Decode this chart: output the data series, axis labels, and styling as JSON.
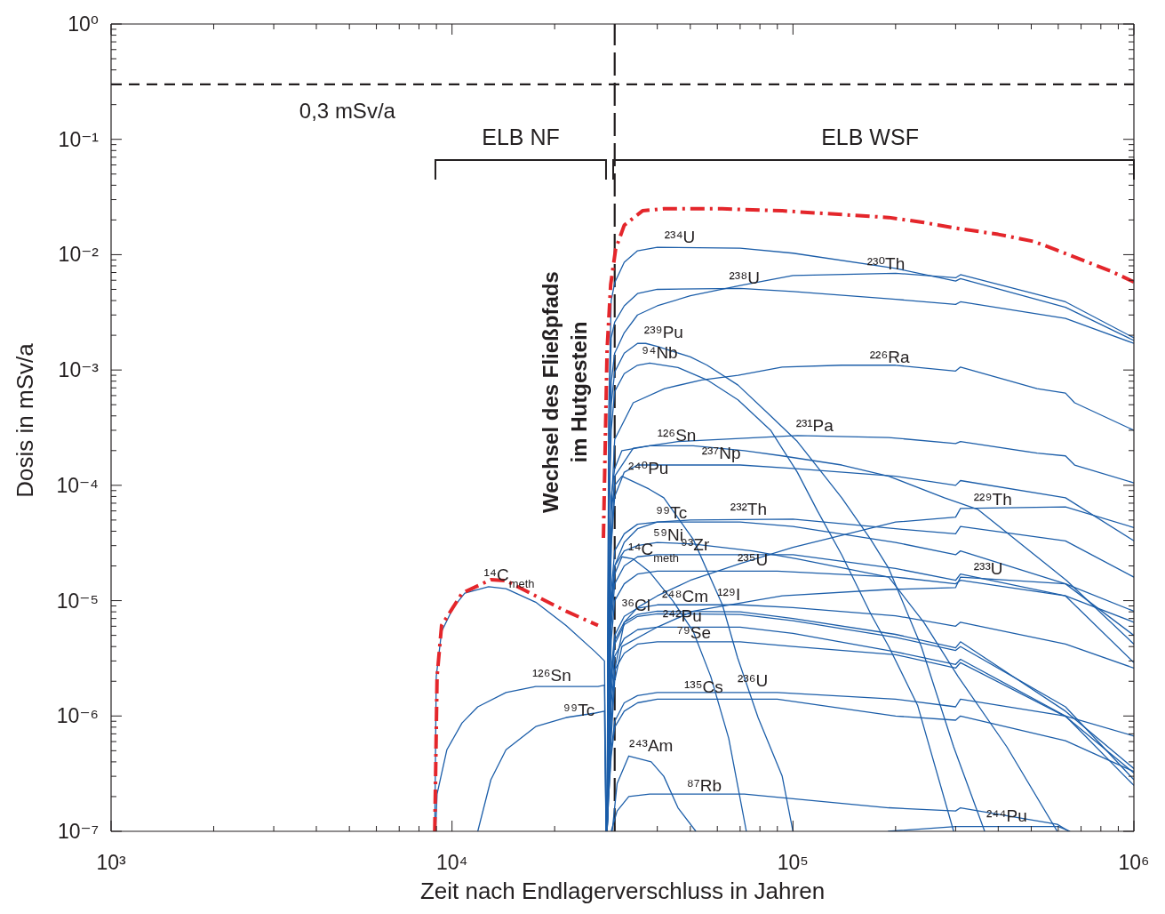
{
  "chart_data": {
    "type": "line",
    "xlabel": "Zeit nach Endlagerverschluss in Jahren",
    "ylabel": "Dosis in mSv/a",
    "log": "xy",
    "marker": "none",
    "line_style": "solid",
    "xlim": [
      1000,
      1000000
    ],
    "ylim": [
      1e-07,
      1
    ],
    "xticks": [
      {
        "value": 1000,
        "label": "10³"
      },
      {
        "value": 2000,
        "label": null
      },
      {
        "value": 3000,
        "label": null
      },
      {
        "value": 4000,
        "label": null
      },
      {
        "value": 5000,
        "label": null
      },
      {
        "value": 6000,
        "label": null
      },
      {
        "value": 7000,
        "label": null
      },
      {
        "value": 8000,
        "label": null
      },
      {
        "value": 9000,
        "label": null
      },
      {
        "value": 10000,
        "label": "10⁴"
      },
      {
        "value": 20000,
        "label": null
      },
      {
        "value": 30000,
        "label": null
      },
      {
        "value": 40000,
        "label": null
      },
      {
        "value": 50000,
        "label": null
      },
      {
        "value": 60000,
        "label": null
      },
      {
        "value": 70000,
        "label": null
      },
      {
        "value": 80000,
        "label": null
      },
      {
        "value": 90000,
        "label": null
      },
      {
        "value": 100000,
        "label": "10⁵"
      },
      {
        "value": 200000,
        "label": null
      },
      {
        "value": 300000,
        "label": null
      },
      {
        "value": 400000,
        "label": null
      },
      {
        "value": 500000,
        "label": null
      },
      {
        "value": 600000,
        "label": null
      },
      {
        "value": 700000,
        "label": null
      },
      {
        "value": 800000,
        "label": null
      },
      {
        "value": 900000,
        "label": null
      },
      {
        "value": 1000000,
        "label": "10⁶"
      }
    ],
    "yticks": [
      {
        "value": 1e-07,
        "label": "10⁻⁷"
      },
      {
        "value": 2e-07,
        "label": null
      },
      {
        "value": 3e-07,
        "label": null
      },
      {
        "value": 4e-07,
        "label": null
      },
      {
        "value": 5e-07,
        "label": null
      },
      {
        "value": 6e-07,
        "label": null
      },
      {
        "value": 7e-07,
        "label": null
      },
      {
        "value": 8e-07,
        "label": null
      },
      {
        "value": 9e-07,
        "label": null
      },
      {
        "value": 1e-06,
        "label": "10⁻⁶"
      },
      {
        "value": 2e-06,
        "label": null
      },
      {
        "value": 3e-06,
        "label": null
      },
      {
        "value": 4e-06,
        "label": null
      },
      {
        "value": 5e-06,
        "label": null
      },
      {
        "value": 6e-06,
        "label": null
      },
      {
        "value": 7e-06,
        "label": null
      },
      {
        "value": 8e-06,
        "label": null
      },
      {
        "value": 9e-06,
        "label": null
      },
      {
        "value": 1e-05,
        "label": "10⁻⁵"
      },
      {
        "value": 2e-05,
        "label": null
      },
      {
        "value": 3e-05,
        "label": null
      },
      {
        "value": 4e-05,
        "label": null
      },
      {
        "value": 5e-05,
        "label": null
      },
      {
        "value": 6e-05,
        "label": null
      },
      {
        "value": 7e-05,
        "label": null
      },
      {
        "value": 8e-05,
        "label": null
      },
      {
        "value": 9e-05,
        "label": null
      },
      {
        "value": 0.0001,
        "label": "10⁻⁴"
      },
      {
        "value": 0.0002,
        "label": null
      },
      {
        "value": 0.0003,
        "label": null
      },
      {
        "value": 0.0004,
        "label": null
      },
      {
        "value": 0.0005,
        "label": null
      },
      {
        "value": 0.0006,
        "label": null
      },
      {
        "value": 0.0007,
        "label": null
      },
      {
        "value": 0.0008,
        "label": null
      },
      {
        "value": 0.0009,
        "label": null
      },
      {
        "value": 0.001,
        "label": "10⁻³"
      },
      {
        "value": 0.002,
        "label": null
      },
      {
        "value": 0.003,
        "label": null
      },
      {
        "value": 0.004,
        "label": null
      },
      {
        "value": 0.005,
        "label": null
      },
      {
        "value": 0.006,
        "label": null
      },
      {
        "value": 0.007,
        "label": null
      },
      {
        "value": 0.008,
        "label": null
      },
      {
        "value": 0.009,
        "label": null
      },
      {
        "value": 0.01,
        "label": "10⁻²"
      },
      {
        "value": 0.02,
        "label": null
      },
      {
        "value": 0.03,
        "label": null
      },
      {
        "value": 0.04,
        "label": null
      },
      {
        "value": 0.05,
        "label": null
      },
      {
        "value": 0.06,
        "label": null
      },
      {
        "value": 0.07,
        "label": null
      },
      {
        "value": 0.08,
        "label": null
      },
      {
        "value": 0.09,
        "label": null
      },
      {
        "value": 0.1,
        "label": "10⁻¹"
      },
      {
        "value": 0.2,
        "label": null
      },
      {
        "value": 0.3,
        "label": null
      },
      {
        "value": 0.4,
        "label": null
      },
      {
        "value": 0.5,
        "label": null
      },
      {
        "value": 0.6,
        "label": null
      },
      {
        "value": 0.7,
        "label": null
      },
      {
        "value": 0.8,
        "label": null
      },
      {
        "value": 0.9,
        "label": null
      },
      {
        "value": 1,
        "label": "10⁰"
      }
    ],
    "ref_lines": [
      {
        "axis": "y",
        "value": 0.3,
        "label": "0,3 mSv/a",
        "color": "#231f20",
        "line_style": "dashed"
      },
      {
        "axis": "x",
        "value": 30000,
        "label": "Wechsel des Fließpfads\nim Hutgestein",
        "color": "#231f20",
        "line_style": "dashed"
      }
    ],
    "series": [
      {
        "color": "#1c5ea9",
        "x": [
          8900,
          8990,
          9320,
          10080,
          10900,
          12800,
          14400,
          17600,
          21600,
          26300,
          28000,
          28300
        ],
        "values": [
          1e-07,
          2.2e-06,
          5.4e-06,
          8.7e-06,
          1.16e-05,
          1.32e-05,
          1.27e-05,
          9.7e-06,
          6.1e-06,
          3.6e-06,
          3e-06,
          1e-07
        ]
      },
      {
        "color": "#1c5ea9",
        "x": [
          8950,
          9040,
          9660,
          10700,
          11900,
          14400,
          17600,
          21600,
          26800,
          28000,
          28300
        ],
        "values": [
          1e-07,
          2.1e-07,
          5.1e-07,
          8.7e-07,
          1.2e-06,
          1.6e-06,
          1.8e-06,
          1.8e-06,
          1.8e-06,
          1.85e-06,
          1e-07
        ]
      },
      {
        "color": "#1c5ea9",
        "x": [
          11900,
          13000,
          14400,
          17600,
          21600,
          26300,
          28000,
          28300
        ],
        "values": [
          1e-07,
          2.8e-07,
          5.1e-07,
          8.1e-07,
          9.7e-07,
          1.06e-06,
          1.1e-06,
          1e-07
        ]
      },
      {
        "color": "#1c5ea9",
        "x": [
          28500,
          28800,
          29300,
          30000,
          32000,
          35000,
          40000,
          70000,
          100000,
          200000,
          300000,
          310000,
          630000,
          1000000
        ],
        "values": [
          1e-07,
          0.0004,
          0.004,
          0.0057,
          0.0086,
          0.0108,
          0.0116,
          0.0114,
          0.0103,
          0.0076,
          0.0059,
          0.0062,
          0.0035,
          0.0018
        ]
      },
      {
        "color": "#1c5ea9",
        "x": [
          28500,
          28800,
          29300,
          30000,
          32000,
          35000,
          40000,
          70000,
          100000,
          200000,
          300000,
          310000,
          630000,
          1000000
        ],
        "values": [
          1e-07,
          0.0002,
          0.0019,
          0.0026,
          0.0036,
          0.0046,
          0.005,
          0.0051,
          0.0048,
          0.0041,
          0.0037,
          0.0039,
          0.0028,
          0.0017
        ]
      },
      {
        "color": "#1c5ea9",
        "x": [
          28500,
          28800,
          29300,
          30000,
          32000,
          35000,
          40000,
          50000,
          70000,
          100000,
          200000,
          300000,
          310000,
          630000,
          1000000
        ],
        "values": [
          1e-07,
          3e-05,
          0.00078,
          0.0014,
          0.0021,
          0.003,
          0.0036,
          0.0044,
          0.0054,
          0.0066,
          0.0069,
          0.0063,
          0.0067,
          0.0039,
          0.0019
        ]
      },
      {
        "color": "#1c5ea9",
        "x": [
          28500,
          28800,
          29300,
          30000,
          32000,
          35000,
          37000,
          40000,
          50000,
          56000,
          69000,
          86000,
          103000,
          139000,
          169000,
          191000,
          238000,
          296000,
          365000
        ],
        "values": [
          1e-07,
          5e-05,
          0.0005,
          0.00096,
          0.0014,
          0.0017,
          0.0017,
          0.0016,
          0.0013,
          0.0011,
          0.00074,
          0.0004,
          0.00024,
          7.8e-05,
          3.4e-05,
          1.9e-05,
          4e-06,
          5.4e-07,
          1e-07
        ]
      },
      {
        "color": "#1c5ea9",
        "x": [
          28500,
          28800,
          29300,
          30000,
          32000,
          35000,
          38000,
          46000,
          56000,
          69000,
          86000,
          103000,
          118000,
          139000,
          169000,
          191000,
          232000,
          296000
        ],
        "values": [
          1e-07,
          4e-05,
          0.0003,
          0.00065,
          0.00093,
          0.0011,
          0.00115,
          0.00105,
          0.00082,
          0.00055,
          0.0003,
          0.00013,
          6e-05,
          2.5e-05,
          7.7e-06,
          4e-06,
          1.24e-06,
          1e-07
        ]
      },
      {
        "color": "#1c5ea9",
        "x": [
          28500,
          28800,
          29300,
          30000,
          34000,
          42000,
          54000,
          69000,
          93000,
          139000,
          200000,
          300000,
          310000,
          520000,
          630000,
          670000,
          1000000
        ],
        "values": [
          1e-07,
          5e-06,
          6e-05,
          0.00025,
          0.00052,
          0.00069,
          0.00082,
          0.0009,
          0.00106,
          0.0011,
          0.0011,
          0.00098,
          0.00106,
          0.00069,
          0.00063,
          0.00052,
          0.0003
        ]
      },
      {
        "color": "#1c5ea9",
        "x": [
          28500,
          28800,
          29300,
          30000,
          34000,
          46000,
          103000,
          191000,
          300000,
          310000,
          520000,
          630000,
          670000,
          1000000
        ],
        "values": [
          1e-07,
          2e-06,
          3e-05,
          0.00012,
          0.00021,
          0.00024,
          0.00027,
          0.00026,
          0.00023,
          0.00024,
          0.00019,
          0.00018,
          0.00015,
          0.000105
        ]
      },
      {
        "color": "#1c5ea9",
        "x": [
          28500,
          28800,
          29300,
          30000,
          31500,
          38000,
          51000,
          72000,
          93000,
          139000,
          191000,
          278000,
          348000,
          634000,
          1000000
        ],
        "values": [
          1e-07,
          1e-05,
          8e-05,
          0.00014,
          0.0002,
          0.00022,
          0.00022,
          0.0002,
          0.00018,
          0.00015,
          0.00012,
          7.8e-05,
          6.2e-05,
          1.5e-05,
          4.2e-06
        ]
      },
      {
        "color": "#1c5ea9",
        "x": [
          28500,
          28800,
          29300,
          30000,
          32000,
          35000,
          70000,
          100000,
          200000,
          300000,
          310000,
          630000,
          1000000
        ],
        "values": [
          1e-07,
          4e-06,
          3e-05,
          8e-05,
          0.00013,
          0.00015,
          0.00015,
          0.00014,
          0.00012,
          0.0001,
          0.00011,
          7.8e-05,
          3.3e-05
        ]
      },
      {
        "color": "#1c5ea9",
        "x": [
          28500,
          28800,
          29300,
          30000,
          31500,
          37800,
          41800,
          51000,
          62100,
          68800,
          79000,
          93000,
          100000
        ],
        "values": [
          1e-07,
          1e-05,
          6e-05,
          0.0001,
          0.00012,
          9.3e-05,
          7.8e-05,
          3.4e-05,
          9.2e-06,
          3.2e-06,
          9.7e-07,
          3e-07,
          1e-07
        ]
      },
      {
        "color": "#1c5ea9",
        "x": [
          28500,
          29000,
          30000,
          32000,
          35000,
          40000,
          50000,
          70000,
          100000,
          200000,
          300000,
          310000,
          630000,
          1000000
        ],
        "values": [
          1e-07,
          5e-07,
          2.5e-06,
          6.5e-06,
          8.7e-06,
          1.1e-05,
          1.5e-05,
          2.1e-05,
          2.9e-05,
          4.8e-05,
          5.3e-05,
          6.3e-05,
          6.5e-05,
          4.3e-05
        ]
      },
      {
        "color": "#1c5ea9",
        "x": [
          28500,
          28800,
          29300,
          30000,
          32000,
          35000,
          40000,
          70000,
          100000,
          200000,
          300000,
          310000,
          630000,
          1000000
        ],
        "values": [
          1e-07,
          2e-06,
          1.2e-05,
          2.7e-05,
          3.8e-05,
          4.6e-05,
          4.8e-05,
          4.8e-05,
          4.4e-05,
          3.2e-05,
          2.5e-05,
          2.7e-05,
          1.4e-05,
          5e-06
        ]
      },
      {
        "color": "#1c5ea9",
        "x": [
          28500,
          28800,
          29300,
          30000,
          32000,
          35000,
          40000,
          50000,
          100000,
          200000,
          300000,
          310000,
          630000,
          1000000
        ],
        "values": [
          1e-07,
          1e-06,
          8e-06,
          2e-05,
          3.2e-05,
          4.2e-05,
          4.8e-05,
          5e-05,
          5.1e-05,
          4.2e-05,
          3.8e-05,
          4.4e-05,
          3.3e-05,
          1.6e-05
        ]
      },
      {
        "color": "#1c5ea9",
        "x": [
          28500,
          28800,
          29300,
          30000,
          32000,
          35000,
          40000,
          51000,
          76000,
          103000,
          191000,
          242000,
          305000,
          424000,
          596000
        ],
        "values": [
          1e-07,
          2e-06,
          1e-05,
          2e-05,
          2.7e-05,
          3e-05,
          3.2e-05,
          3.1e-05,
          2.7e-05,
          2.3e-05,
          1.6e-05,
          6.5e-06,
          2.2e-06,
          5.4e-07,
          1e-07
        ]
      },
      {
        "color": "#1c5ea9",
        "x": [
          28500,
          28800,
          29300,
          30000,
          31500,
          34000,
          37800,
          44400,
          51000,
          57400,
          64800,
          73000
        ],
        "values": [
          1e-07,
          1.5e-06,
          8e-06,
          1.7e-05,
          2.4e-05,
          2.3e-05,
          1.8e-05,
          1e-05,
          5.4e-06,
          2.2e-06,
          6.4e-07,
          1e-07
        ]
      },
      {
        "color": "#1c5ea9",
        "x": [
          28500,
          28800,
          29300,
          30000,
          32000,
          35000,
          40000,
          100000,
          200000,
          300000,
          310000,
          630000,
          1000000
        ],
        "values": [
          1e-07,
          1e-06,
          6e-06,
          1.4e-05,
          2e-05,
          2.4e-05,
          2.5e-05,
          2.5e-05,
          1.9e-05,
          1.5e-05,
          1.7e-05,
          1.1e-05,
          2.9e-06
        ]
      },
      {
        "color": "#1c5ea9",
        "x": [
          28500,
          28800,
          29300,
          30000,
          32000,
          35000,
          40000,
          90000,
          200000,
          300000,
          310000,
          630000,
          1000000
        ],
        "values": [
          1e-07,
          8e-07,
          4.5e-06,
          1e-05,
          1.4e-05,
          1.7e-05,
          1.8e-05,
          1.8e-05,
          1.6e-05,
          1.4e-05,
          1.5e-05,
          1.1e-05,
          6.5e-06
        ]
      },
      {
        "color": "#1c5ea9",
        "x": [
          28500,
          29000,
          30000,
          31500,
          40000,
          51000,
          93000,
          191000,
          300000,
          310000,
          630000,
          1000000
        ],
        "values": [
          1e-07,
          4e-07,
          2e-06,
          4e-06,
          5.9e-06,
          8.1e-06,
          1.1e-05,
          1.25e-05,
          1.3e-05,
          1.6e-05,
          1.4e-05,
          8.1e-06
        ]
      },
      {
        "color": "#1c5ea9",
        "x": [
          28500,
          28800,
          29300,
          30000,
          32000,
          35000,
          40000,
          70000,
          100000,
          200000,
          300000,
          310000,
          630000,
          1000000
        ],
        "values": [
          1e-07,
          5e-07,
          2.5e-06,
          5e-06,
          7.3e-06,
          8.6e-06,
          9.2e-06,
          9.2e-06,
          8.7e-06,
          7.4e-06,
          6e-06,
          6.5e-06,
          4.2e-06,
          2.6e-06
        ]
      },
      {
        "color": "#1c5ea9",
        "x": [
          28500,
          28800,
          29300,
          30000,
          32000,
          35000,
          40000,
          70000,
          100000,
          200000,
          300000,
          310000,
          630000,
          1000000
        ],
        "values": [
          1e-07,
          5e-07,
          2.2e-06,
          4.5e-06,
          6.5e-06,
          7.6e-06,
          8.1e-06,
          8e-06,
          7e-06,
          5.1e-06,
          3.9e-06,
          4.4e-06,
          1.1e-06,
          3.5e-07
        ]
      },
      {
        "color": "#1c5ea9",
        "x": [
          28500,
          28800,
          29300,
          30000,
          32000,
          35000,
          40000,
          70000,
          100000,
          200000,
          300000,
          310000,
          630000,
          1000000
        ],
        "values": [
          1e-07,
          4e-07,
          2e-06,
          4.2e-06,
          6.2e-06,
          7.3e-06,
          7.7e-06,
          7.6e-06,
          6.7e-06,
          4.8e-06,
          3.7e-06,
          4e-06,
          1.2e-06,
          2.8e-07
        ]
      },
      {
        "color": "#1c5ea9",
        "x": [
          28500,
          28800,
          29300,
          30000,
          32000,
          35000,
          40000,
          70000,
          100000,
          200000,
          300000,
          310000,
          630000,
          1000000
        ],
        "values": [
          1e-07,
          3e-07,
          1.6e-06,
          3.3e-06,
          4.7e-06,
          5.6e-06,
          5.9e-06,
          5.9e-06,
          5.2e-06,
          3.6e-06,
          2.8e-06,
          3.1e-06,
          1e-06,
          2.5e-07
        ]
      },
      {
        "color": "#1c5ea9",
        "x": [
          28500,
          28800,
          29300,
          30000,
          32000,
          35000,
          40000,
          70000,
          100000,
          200000,
          300000,
          310000,
          630000,
          1000000
        ],
        "values": [
          1e-07,
          3e-07,
          1.3e-06,
          2.5e-06,
          3.5e-06,
          4.2e-06,
          4.4e-06,
          4.4e-06,
          4e-06,
          3.4e-06,
          2.6e-06,
          2.9e-06,
          9.9e-07,
          3.2e-07
        ]
      },
      {
        "color": "#1c5ea9",
        "x": [
          28500,
          28800,
          29300,
          30000,
          32000,
          35000,
          40000,
          90000,
          200000,
          300000,
          310000,
          630000,
          1000000
        ],
        "values": [
          1e-07,
          2e-07,
          5e-07,
          9e-07,
          1.3e-06,
          1.5e-06,
          1.6e-06,
          1.6e-06,
          1.4e-06,
          1.2e-06,
          1.4e-06,
          1e-06,
          6.7e-07
        ]
      },
      {
        "color": "#1c5ea9",
        "x": [
          28500,
          28800,
          29300,
          30000,
          32000,
          35000,
          40000,
          90000,
          200000,
          300000,
          310000,
          630000,
          1000000
        ],
        "values": [
          1e-07,
          2e-07,
          4.5e-07,
          8e-07,
          1.1e-06,
          1.3e-06,
          1.4e-06,
          1.4e-06,
          1e-06,
          9.2e-07,
          1e-06,
          6.1e-07,
          3.3e-07
        ]
      },
      {
        "color": "#1c5ea9",
        "x": [
          29500,
          30500,
          33000,
          38400,
          41800,
          46000,
          51900
        ],
        "values": [
          1e-07,
          2.6e-07,
          4.5e-07,
          4e-07,
          3e-07,
          1.6e-07,
          1e-07
        ]
      },
      {
        "color": "#1c5ea9",
        "x": [
          29300,
          30500,
          33000,
          38000,
          72000,
          191000,
          300000,
          310000,
          596000,
          645000
        ],
        "values": [
          1e-07,
          1.5e-07,
          2e-07,
          2.1e-07,
          2.1e-07,
          1.6e-07,
          1.5e-07,
          1.6e-07,
          1.15e-07,
          1e-07
        ]
      },
      {
        "color": "#1c5ea9",
        "x": [
          190000,
          300000,
          600000,
          650000
        ],
        "values": [
          1e-07,
          1.1e-07,
          1.1e-07,
          1e-07
        ]
      },
      {
        "color": "#e4262b",
        "line_style": "dashed",
        "x": [
          8900,
          9040,
          9320,
          10700,
          13000,
          14400,
          17600,
          21600,
          26800
        ],
        "values": [
          1e-07,
          2.2e-06,
          6.1e-06,
          1.16e-05,
          1.52e-05,
          1.49e-05,
          1.1e-05,
          8.1e-06,
          6.1e-06
        ]
      },
      {
        "color": "#e4262b",
        "line_style": "dashed",
        "x": [
          27800,
          28500,
          29200,
          30200,
          32000,
          36200,
          41800,
          62000,
          93000,
          191000,
          242000,
          300000,
          400000,
          510000,
          660000,
          855000,
          1000000
        ],
        "values": [
          3.5e-05,
          0.0015,
          0.0055,
          0.0112,
          0.018,
          0.024,
          0.025,
          0.025,
          0.024,
          0.021,
          0.019,
          0.017,
          0.015,
          0.013,
          0.0097,
          0.0072,
          0.0058
        ]
      }
    ],
    "annotations": [
      "ELB NF",
      "ELB WSF",
      {
        "text": "¹⁴C$_{meth}$",
        "x": 12400,
        "y": 1.42e-05
      },
      {
        "text": "¹²⁶Sn",
        "x": 17200,
        "y": 1.9e-06
      },
      {
        "text": "⁹⁹Tc",
        "x": 21200,
        "y": 9.6e-07
      },
      {
        "text": "²³⁴U",
        "x": 42000,
        "y": 0.012
      },
      {
        "text": "²³⁸U",
        "x": 65000,
        "y": 0.0053
      },
      {
        "text": "²³⁰Th",
        "x": 165000,
        "y": 0.0071
      },
      {
        "text": "²³⁹Pu",
        "x": 36600,
        "y": 0.0018
      },
      {
        "text": "⁹⁴Nb",
        "x": 36000,
        "y": 0.0012
      },
      {
        "text": "²²⁶Ra",
        "x": 168000,
        "y": 0.0011
      },
      {
        "text": "²³¹Pa",
        "x": 102000,
        "y": 0.00028
      },
      {
        "text": "¹²⁶Sn",
        "x": 40000,
        "y": 0.00023
      },
      {
        "text": "²³⁷Np",
        "x": 54000,
        "y": 0.00016
      },
      {
        "text": "²⁴⁰Pu",
        "x": 32900,
        "y": 0.00012
      },
      {
        "text": "²²⁹Th",
        "x": 339000,
        "y": 6.4e-05
      },
      {
        "text": "⁹⁹Tc",
        "x": 39600,
        "y": 4.9e-05
      },
      {
        "text": "²³²Th",
        "x": 65500,
        "y": 5.3e-05
      },
      {
        "text": "⁵⁹Ni",
        "x": 38900,
        "y": 3.15e-05
      },
      {
        "text": "¹⁴C$_{meth}$",
        "x": 32900,
        "y": 2.35e-05
      },
      {
        "text": "⁹³Zr",
        "x": 46800,
        "y": 2.6e-05
      },
      {
        "text": "²³⁵U",
        "x": 68800,
        "y": 1.9e-05
      },
      {
        "text": "²³³U",
        "x": 339000,
        "y": 1.6e-05
      },
      {
        "text": "²⁴⁸Cm",
        "x": 41300,
        "y": 9.2e-06
      },
      {
        "text": "³⁶Cl",
        "x": 31500,
        "y": 7.7e-06
      },
      {
        "text": "¹²⁹I",
        "x": 60000,
        "y": 9.6e-06
      },
      {
        "text": "²⁴²Pu",
        "x": 41500,
        "y": 6.3e-06
      },
      {
        "text": "⁷⁹Se",
        "x": 45700,
        "y": 4.5e-06
      },
      {
        "text": "¹³⁵Cs",
        "x": 48000,
        "y": 1.5e-06
      },
      {
        "text": "²³⁶U",
        "x": 68800,
        "y": 1.7e-06
      },
      {
        "text": "²⁴³Am",
        "x": 33100,
        "y": 4.7e-07
      },
      {
        "text": "⁸⁷Rb",
        "x": 48800,
        "y": 2.1e-07
      },
      {
        "text": "²⁴⁴Pu",
        "x": 369000,
        "y": 1.15e-07
      }
    ]
  }
}
